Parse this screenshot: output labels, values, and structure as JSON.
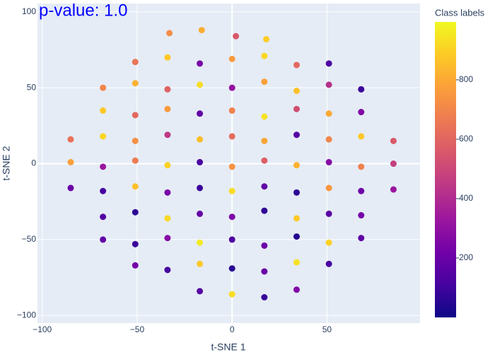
{
  "chart_data": {
    "type": "scatter",
    "annotation": "p-value: 1.0",
    "xlabel": "t-SNE 1",
    "ylabel": "t-SNE 2",
    "colorbar_title": "Class labels",
    "xlim": [
      -102.5,
      99
    ],
    "ylim": [
      -105,
      105.5
    ],
    "xticks": [
      {
        "value": -100,
        "label": "−100"
      },
      {
        "value": -50,
        "label": "−50"
      },
      0,
      50
    ],
    "yticks": [
      {
        "value": -100,
        "label": "−100"
      },
      {
        "value": -50,
        "label": "−50"
      },
      0,
      50,
      100
    ],
    "clim": [
      0,
      995
    ],
    "cticks": [
      200,
      400,
      600,
      800
    ],
    "colorscale": [
      "#0d0887",
      "#46039f",
      "#7201a8",
      "#9c179e",
      "#bd3786",
      "#d8576b",
      "#ed7953",
      "#fb9f3a",
      "#fdca26",
      "#f0f921"
    ],
    "grid": true,
    "x": [
      -33,
      -16,
      2,
      18,
      -51,
      -34,
      -17,
      0,
      17,
      34,
      51,
      -68,
      -51,
      -34,
      -17,
      0,
      17,
      34,
      51,
      68,
      -68,
      -51,
      -34,
      -17,
      0,
      17,
      34,
      51,
      68,
      -85,
      -68,
      -51,
      -34,
      -17,
      0,
      17,
      34,
      51,
      68,
      85,
      -85,
      -68,
      -51,
      -34,
      -17,
      0,
      17,
      34,
      51,
      68,
      85,
      -85,
      -68,
      -51,
      -34,
      -17,
      0,
      17,
      34,
      51,
      68,
      85,
      -68,
      -51,
      -34,
      -17,
      0,
      17,
      34,
      51,
      68,
      -68,
      -51,
      -34,
      -17,
      0,
      17,
      34,
      51,
      68,
      -51,
      -34,
      -17,
      0,
      17,
      34,
      51,
      -17,
      0,
      17,
      34
    ],
    "values": [
      86,
      88,
      84,
      82,
      67,
      70,
      66,
      69,
      71,
      65,
      66,
      50,
      53,
      49,
      52,
      50,
      54,
      48,
      52,
      49,
      35,
      32,
      36,
      33,
      35,
      31,
      36,
      33,
      34,
      16,
      18,
      15,
      19,
      16,
      18,
      15,
      19,
      16,
      18,
      15,
      1,
      -2,
      2,
      -1,
      1,
      -2,
      2,
      -1,
      1,
      -2,
      0,
      -16,
      -18,
      -15,
      -19,
      -16,
      -18,
      -15,
      -19,
      -16,
      -18,
      -17,
      -35,
      -32,
      -36,
      -33,
      -35,
      -31,
      -36,
      -33,
      -34,
      -50,
      -53,
      -49,
      -52,
      -50,
      -54,
      -48,
      -52,
      -49,
      -67,
      -70,
      -66,
      -69,
      -71,
      -65,
      -66,
      -84,
      -86,
      -88,
      -83
    ],
    "color_values": [
      720,
      810,
      560,
      890,
      650,
      880,
      240,
      760,
      920,
      610,
      130,
      700,
      820,
      590,
      930,
      310,
      780,
      860,
      420,
      90,
      880,
      610,
      760,
      180,
      690,
      940,
      520,
      800,
      260,
      640,
      910,
      730,
      450,
      850,
      620,
      790,
      150,
      700,
      880,
      560,
      780,
      330,
      670,
      900,
      120,
      740,
      580,
      820,
      270,
      690,
      470,
      200,
      110,
      860,
      240,
      90,
      930,
      180,
      60,
      750,
      210,
      320,
      140,
      60,
      920,
      190,
      250,
      70,
      880,
      160,
      230,
      180,
      90,
      270,
      960,
      130,
      210,
      40,
      900,
      170,
      230,
      110,
      880,
      50,
      200,
      940,
      120,
      150,
      930,
      80,
      260
    ]
  }
}
